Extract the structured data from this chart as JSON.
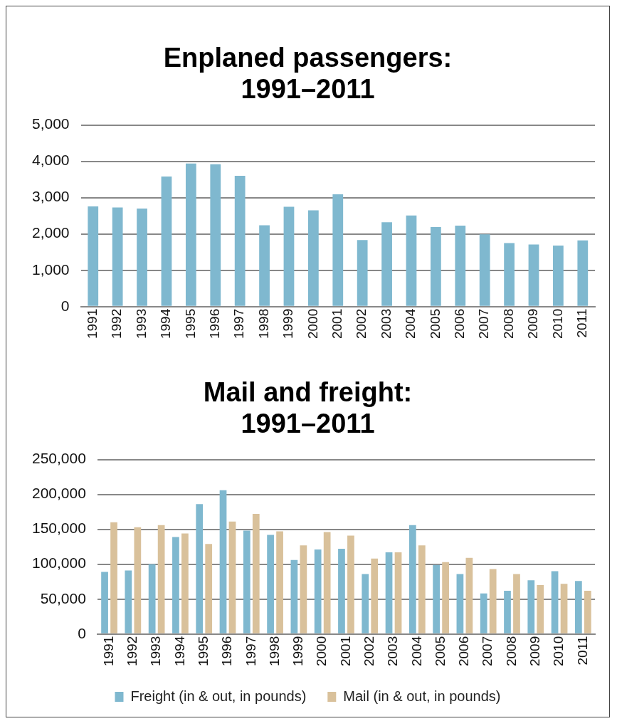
{
  "chart_data": [
    {
      "type": "bar",
      "title": "Enplaned passengers:\n1991–2011",
      "categories": [
        "1991",
        "1992",
        "1993",
        "1994",
        "1995",
        "1996",
        "1997",
        "1998",
        "1999",
        "2000",
        "2001",
        "2002",
        "2003",
        "2004",
        "2005",
        "2006",
        "2007",
        "2008",
        "2009",
        "2010",
        "2011"
      ],
      "series": [
        {
          "color": "#7fb8cf",
          "values": [
            2760,
            2730,
            2700,
            3580,
            3940,
            3920,
            3600,
            2240,
            2750,
            2650,
            3090,
            1830,
            2320,
            2510,
            2190,
            2230,
            1990,
            1750,
            1710,
            1680,
            1820
          ]
        }
      ],
      "ylim": [
        0,
        5000
      ],
      "yticks": [
        {
          "value": 0,
          "label": "0"
        },
        {
          "value": 1000,
          "label": "1,000"
        },
        {
          "value": 2000,
          "label": "2,000"
        },
        {
          "value": 3000,
          "label": "3,000"
        },
        {
          "value": 4000,
          "label": "4,000"
        },
        {
          "value": 5000,
          "label": "5,000"
        }
      ],
      "grid": "y",
      "legend": false
    },
    {
      "type": "bar",
      "title": "Mail and freight:\n1991–2011",
      "categories": [
        "1991",
        "1992",
        "1993",
        "1994",
        "1995",
        "1996",
        "1997",
        "1998",
        "1999",
        "2000",
        "2001",
        "2002",
        "2003",
        "2004",
        "2005",
        "2006",
        "2007",
        "2008",
        "2009",
        "2010",
        "2011"
      ],
      "series": [
        {
          "name": "Freight (in & out, in pounds)",
          "color": "#7fb8cf",
          "values": [
            89000,
            91000,
            100000,
            139000,
            186000,
            206000,
            148000,
            142000,
            106000,
            121000,
            122000,
            86000,
            117000,
            156000,
            99000,
            86000,
            58000,
            62000,
            77000,
            90000,
            76000
          ]
        },
        {
          "name": "Mail (in & out, in pounds)",
          "color": "#d9c19b",
          "values": [
            160000,
            153000,
            156000,
            144000,
            129000,
            161000,
            172000,
            147000,
            127000,
            146000,
            141000,
            108000,
            117000,
            127000,
            103000,
            109000,
            93000,
            86000,
            70000,
            72000,
            62000
          ]
        }
      ],
      "ylim": [
        0,
        250000
      ],
      "yticks": [
        {
          "value": 0,
          "label": "0"
        },
        {
          "value": 50000,
          "label": "50,000"
        },
        {
          "value": 100000,
          "label": "100,000"
        },
        {
          "value": 150000,
          "label": "150,000"
        },
        {
          "value": 200000,
          "label": "200,000"
        },
        {
          "value": 250000,
          "label": "250,000"
        }
      ],
      "grid": "y",
      "legend": "bottom"
    }
  ]
}
